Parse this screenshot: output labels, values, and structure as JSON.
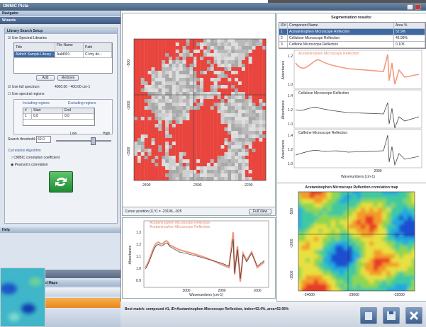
{
  "window": {
    "title": "OMNIC Picta"
  },
  "navigator": {
    "title": "Navigator",
    "section": "Wizards",
    "library": {
      "title": "Library Search Setup",
      "use_libraries": "Use Spectral Libraries",
      "columns": [
        "Title",
        "File Name",
        "Path"
      ],
      "row": [
        "Aldrich Sample Library ...",
        "Aald001",
        "C:\\my do..."
      ],
      "add": "Add",
      "remove": "Remove"
    },
    "full_spectrum": "Use full spectrum",
    "range": "4000.00 - 400.00 cm-1",
    "regions": "Use spectral regions",
    "tabs": [
      "Including regions",
      "Excluding regions"
    ],
    "region_columns": [
      "#",
      "Start",
      "End"
    ],
    "region_row": [
      "1",
      "0.0",
      "0.0"
    ],
    "threshold_label": "Search threshold:",
    "threshold": "60.0",
    "low": "Low",
    "high": "High",
    "algorithm": "Correlation Algorithm",
    "options": [
      "CMBIC correlation coefficient",
      "Pearson's correlation"
    ],
    "help": "Help",
    "maps": "d Maps"
  },
  "map": {
    "yticks": [
      "-500",
      "-1000",
      "-1500"
    ],
    "xticks": [
      "-2400",
      "-2300",
      "-2200"
    ],
    "cursor": "Cursor position (X,Y) = -23196, -925",
    "full_view": "Full View"
  },
  "segmentation": {
    "title": "Segmentation results:",
    "columns": [
      "ID#",
      "Component Name",
      "Area %"
    ],
    "rows": [
      [
        "1",
        "Acetaminophen Microscope Reflection",
        "52.9%"
      ],
      [
        "2",
        "Cellulose Microscope Reflection",
        "46.99%"
      ],
      [
        "3",
        "Caffeine Microscope Reflection",
        "0.105"
      ]
    ],
    "ylabel": "Absorbance",
    "xlabel": "Wavenumbers (cm-1)",
    "xtick": "2000",
    "yticks": [
      [
        "1.2",
        "1.0"
      ],
      [
        "1.4",
        "1.2",
        "1.0"
      ],
      [
        "1.4",
        "1.2",
        "1.0"
      ]
    ]
  },
  "correlation": {
    "title": "Acetaminophen Microscope Reflection correlation map",
    "xticks": [
      "-24000",
      "-23000",
      "-22000"
    ],
    "yticks": [
      "-500",
      "-1000",
      "-1500"
    ]
  },
  "spectrum": {
    "legend": [
      "Acetaminophen Microscope Reflection",
      "Acetaminophen Microscope Reflection"
    ],
    "yticks": [
      "1.3",
      "1.2",
      "1.1",
      "1.0",
      "0.9"
    ],
    "xticks": [
      "3000",
      "2000",
      "1000"
    ],
    "ylabel": "Absorbance",
    "xlabel": "Wavenumbers (cm-1)"
  },
  "status": "Best match: compound #1, ID=Acetaminophen Microscope Reflection, index=92.4%, area=52.95%"
}
